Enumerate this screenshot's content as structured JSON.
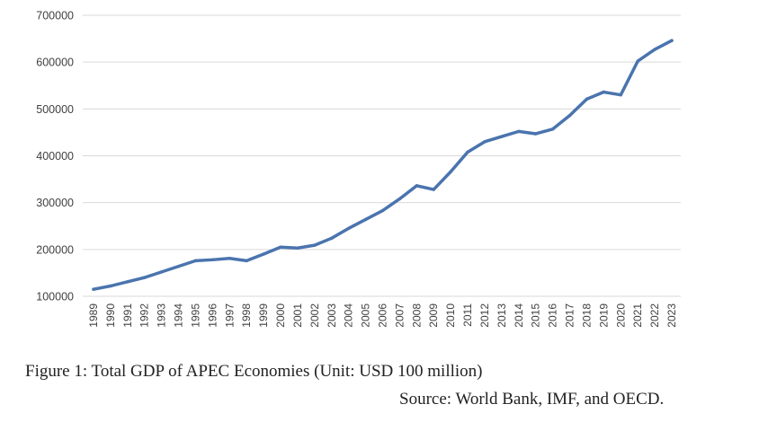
{
  "caption": "Figure 1: Total GDP of APEC Economies (Unit: USD 100 million)",
  "source": "Source: World Bank, IMF, and OECD.",
  "colors": {
    "line": "#4a74ae",
    "grid": "#d9d9d9",
    "text": "#404040"
  },
  "chart_data": {
    "type": "line",
    "x": [
      "1989",
      "1990",
      "1991",
      "1992",
      "1993",
      "1994",
      "1995",
      "1996",
      "1997",
      "1998",
      "1999",
      "2000",
      "2001",
      "2002",
      "2003",
      "2004",
      "2005",
      "2006",
      "2007",
      "2008",
      "2009",
      "2010",
      "2011",
      "2012",
      "2013",
      "2014",
      "2015",
      "2016",
      "2017",
      "2018",
      "2019",
      "2020",
      "2021",
      "2022",
      "2023"
    ],
    "series": [
      {
        "values": [
          115000,
          122000,
          131000,
          140000,
          152000,
          164000,
          176000,
          178000,
          181000,
          176000,
          190000,
          205000,
          203000,
          209000,
          224000,
          245000,
          264000,
          283000,
          308000,
          336000,
          328000,
          366000,
          408000,
          430000,
          441000,
          452000,
          447000,
          457000,
          486000,
          521000,
          536000,
          530000,
          602000,
          627000,
          646000
        ]
      }
    ],
    "yticks": [
      "100000",
      "200000",
      "300000",
      "400000",
      "500000",
      "600000",
      "700000"
    ],
    "ylim": [
      100000,
      700000
    ],
    "grid": true
  }
}
